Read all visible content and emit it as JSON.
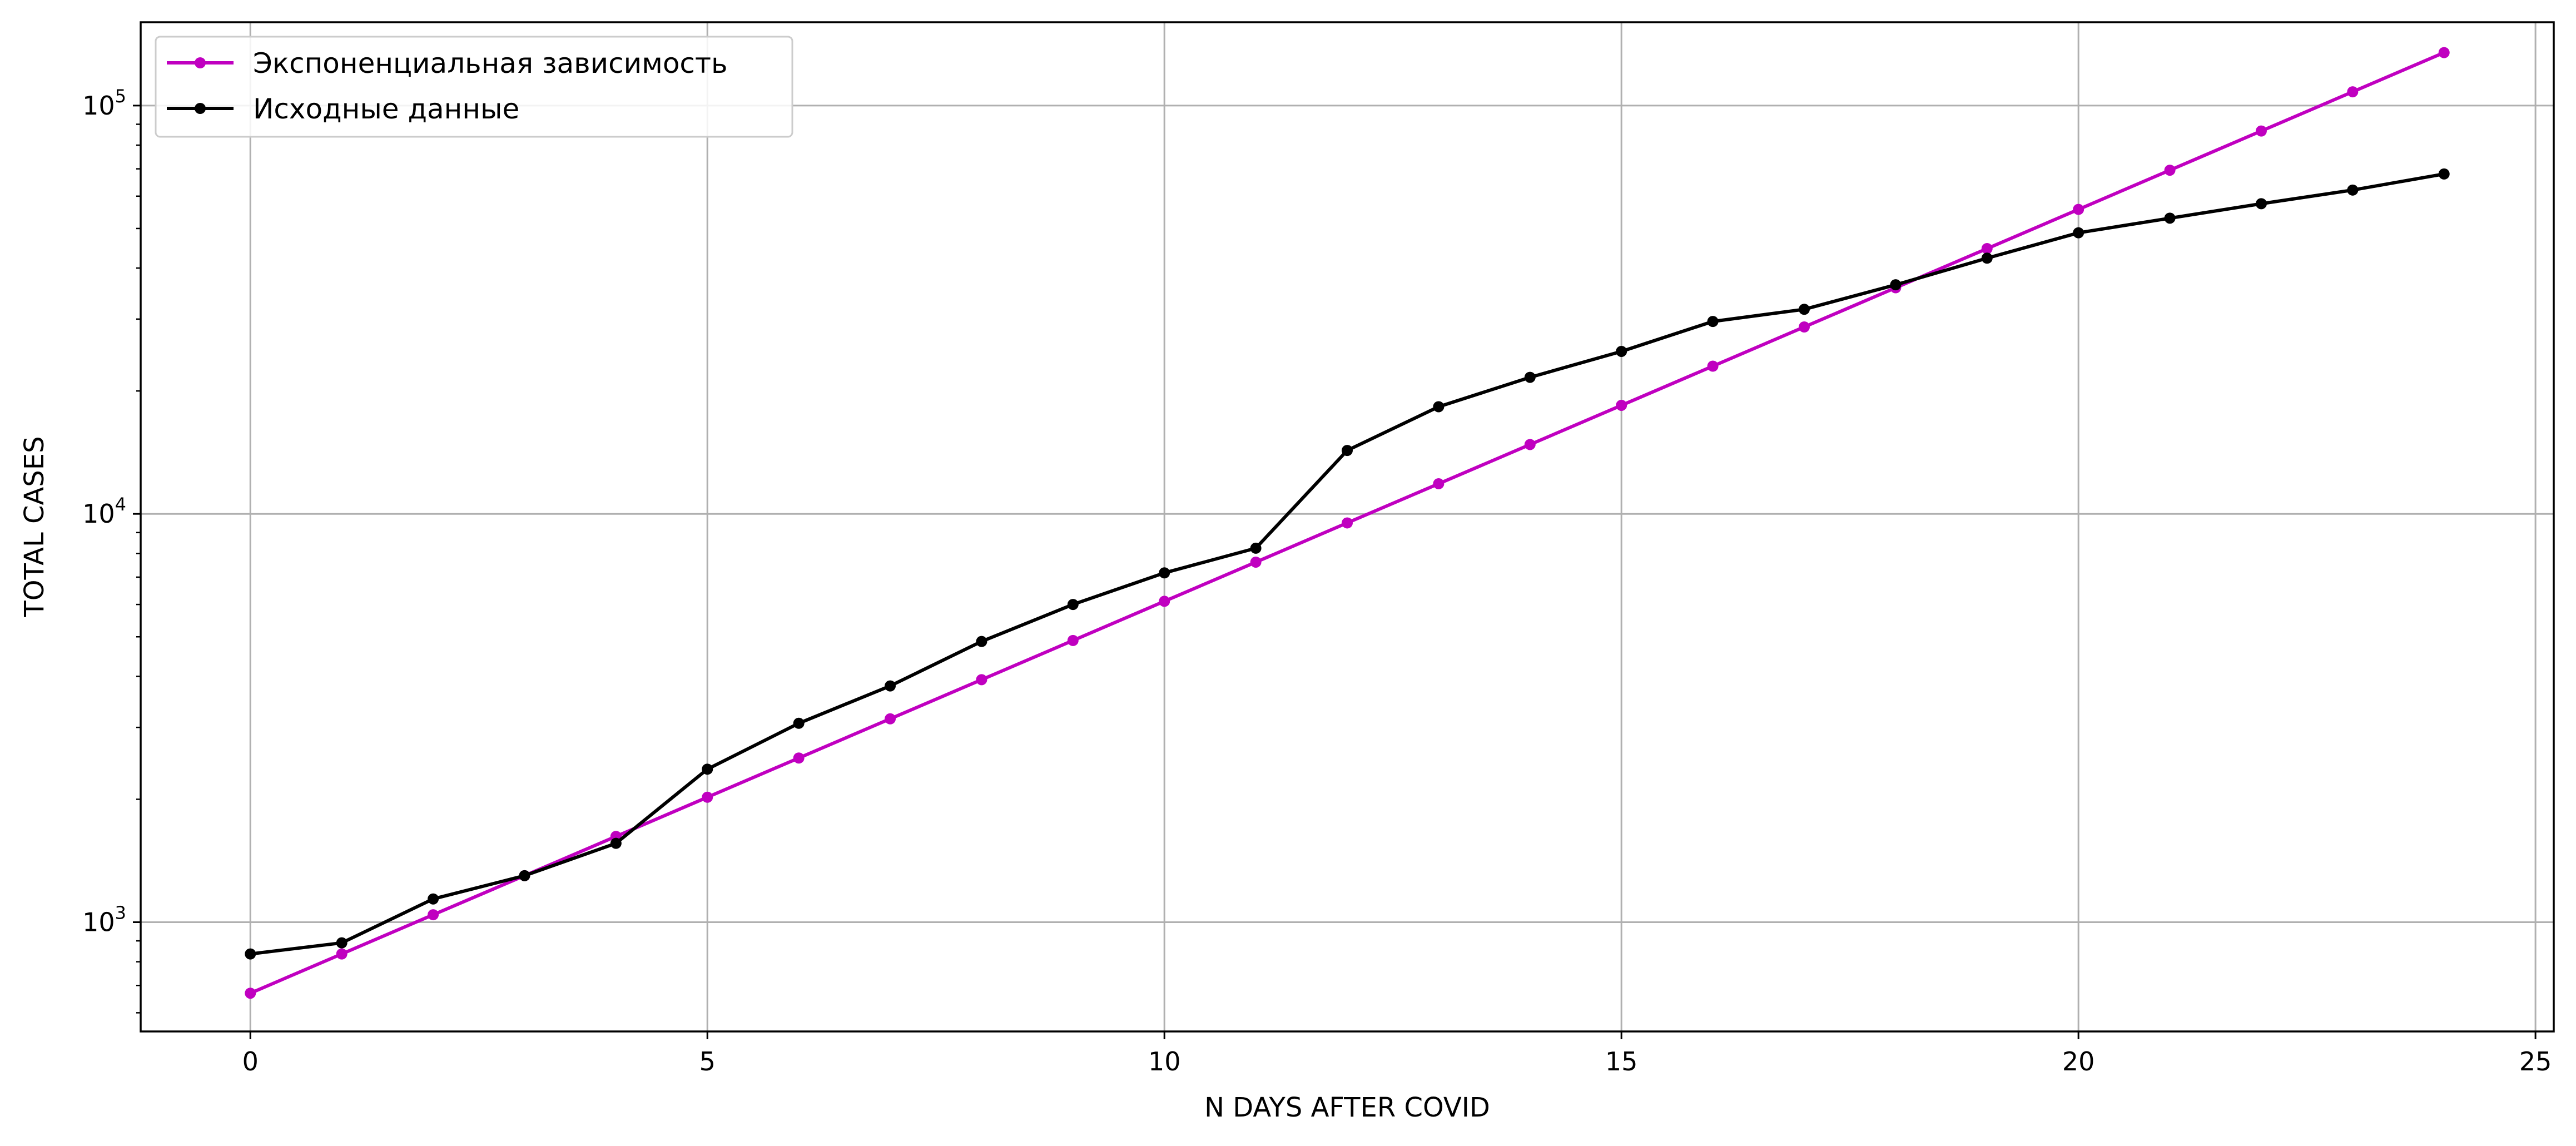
{
  "chart_data": {
    "type": "line",
    "xlabel": "N DAYS AFTER COVID",
    "ylabel": "TOTAL CASES",
    "xlim": [
      -1.2,
      25.2
    ],
    "ylim": [
      540,
      160000
    ],
    "yscale": "log",
    "x_ticks": [
      0,
      5,
      10,
      15,
      20,
      25
    ],
    "y_ticks": [
      {
        "value": 1000,
        "base": "10",
        "exp": "3"
      },
      {
        "value": 10000,
        "base": "10",
        "exp": "4"
      },
      {
        "value": 100000,
        "base": "10",
        "exp": "5"
      }
    ],
    "grid": true,
    "legend_position": "top-left",
    "x": [
      0,
      1,
      2,
      3,
      4,
      5,
      6,
      7,
      8,
      9,
      10,
      11,
      12,
      13,
      14,
      15,
      16,
      17,
      18,
      19,
      20,
      21,
      22,
      23,
      24
    ],
    "series": [
      {
        "name": "Экспоненциальная зависимость",
        "color": "#c000c0",
        "values": [
          670,
          836,
          1043,
          1300,
          1622,
          2023,
          2524,
          3148,
          3926,
          4897,
          6108,
          7618,
          9503,
          11854,
          14786,
          18443,
          23005,
          28695,
          35793,
          44646,
          55690,
          69464,
          86646,
          108078,
          134810
        ]
      },
      {
        "name": "Исходные данные",
        "color": "#000000",
        "values": [
          836,
          890,
          1140,
          1300,
          1560,
          2370,
          3070,
          3790,
          4870,
          6000,
          7170,
          8240,
          14300,
          18300,
          21600,
          25000,
          29600,
          31700,
          36400,
          42300,
          48800,
          53000,
          57500,
          62100,
          68000
        ]
      }
    ]
  }
}
